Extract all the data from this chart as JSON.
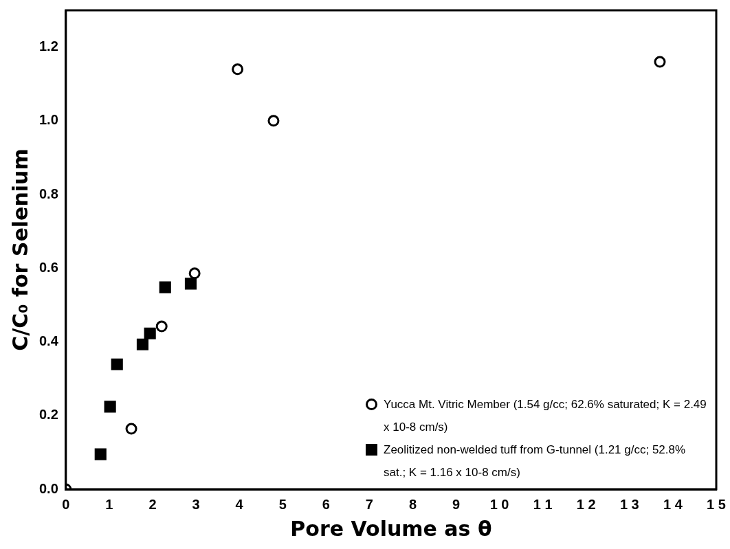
{
  "chart_data": {
    "type": "scatter",
    "xlabel": "Pore Volume as θ",
    "ylabel": "C/C₀ for Selenium",
    "series": [
      {
        "name": "Yucca Mt. Vitric Member (1.54 g/cc; 62.6% saturated; K = 2.49 x 10-8 cm/s)",
        "color": "#000000",
        "marker": "circle",
        "x": [
          0,
          1.51,
          2.21,
          2.97,
          3.96,
          4.79,
          13.7
        ],
        "values": [
          0,
          0.164,
          0.442,
          0.586,
          1.14,
          1.0,
          1.16
        ]
      },
      {
        "name": "Zeolitized non-welded tuff from G-tunnel (1.21 g/cc; 52.8% sat.; K = 1.16 x 10-8 cm/s)",
        "color": "#000000",
        "marker": "square",
        "x": [
          0.8,
          1.02,
          1.18,
          1.77,
          1.94,
          2.29,
          2.88
        ],
        "values": [
          0.095,
          0.224,
          0.339,
          0.393,
          0.423,
          0.548,
          0.558
        ]
      }
    ],
    "xlim": [
      0,
      15
    ],
    "xticks": [
      0,
      1,
      2,
      3,
      4,
      5,
      6,
      7,
      8,
      9,
      {
        "value": 10,
        "label": "1 0"
      },
      {
        "value": 11,
        "label": "1 1"
      },
      {
        "value": 12,
        "label": "1 2"
      },
      {
        "value": 13,
        "label": "1 3"
      },
      {
        "value": 14,
        "label": "1 4"
      },
      {
        "value": 15,
        "label": "1 5"
      }
    ],
    "ylim": [
      0,
      1.3
    ],
    "yticks": [
      {
        "value": 0,
        "label": "0.0"
      },
      0.2,
      0.4,
      0.6,
      0.8,
      {
        "value": 1,
        "label": "1.0"
      },
      1.2
    ],
    "legend": "bottom right",
    "grid": false
  }
}
